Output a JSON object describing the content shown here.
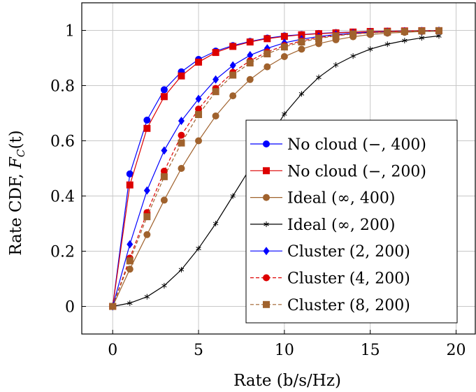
{
  "chart_data": {
    "type": "line",
    "title": "",
    "xlabel": "Rate (b/s/Hz)",
    "ylabel": "Rate CDF, F_C(t)",
    "ylabel_main": "Rate CDF, ",
    "ylabel_F": "F",
    "ylabel_sub": "C",
    "ylabel_arg": "(t)",
    "xlim": [
      -1.8,
      21.2
    ],
    "ylim": [
      -0.1,
      1.1
    ],
    "xticks": [
      0,
      5,
      10,
      15,
      20
    ],
    "xtick_labels": [
      "0",
      "5",
      "10",
      "15",
      "20"
    ],
    "yticks": [
      0,
      0.2,
      0.4,
      0.6,
      0.8,
      1
    ],
    "ytick_labels": [
      "0",
      "0.2",
      "0.4",
      "0.6",
      "0.8",
      "1"
    ],
    "grid": true,
    "legend_position": "bottom-right",
    "series": [
      {
        "name": "No cloud (−, 400)",
        "label_main": "No cloud ",
        "label_params": "(−, 400)",
        "color": "#0000ff",
        "marker": "circle",
        "dashed": false,
        "x": [
          0,
          1,
          2,
          3,
          4,
          5,
          6,
          7,
          8,
          9,
          10,
          11,
          12,
          13,
          14,
          15,
          16,
          17,
          18,
          19
        ],
        "y": [
          0,
          0.48,
          0.675,
          0.785,
          0.85,
          0.895,
          0.925,
          0.945,
          0.96,
          0.972,
          0.98,
          0.985,
          0.989,
          0.992,
          0.994,
          0.996,
          0.997,
          0.998,
          0.999,
          0.999
        ]
      },
      {
        "name": "No cloud (−, 200)",
        "label_main": "No cloud ",
        "label_params": "(−, 200)",
        "color": "#dd0000",
        "marker": "square",
        "dashed": false,
        "x": [
          0,
          1,
          2,
          3,
          4,
          5,
          6,
          7,
          8,
          9,
          10,
          11,
          12,
          13,
          14,
          15,
          16,
          17,
          18,
          19
        ],
        "y": [
          0,
          0.44,
          0.645,
          0.76,
          0.835,
          0.885,
          0.92,
          0.942,
          0.958,
          0.97,
          0.978,
          0.984,
          0.988,
          0.991,
          0.994,
          0.996,
          0.997,
          0.998,
          0.999,
          0.999
        ]
      },
      {
        "name": "Ideal (∞, 400)",
        "label_main": "Ideal ",
        "label_params": "(∞, 400)",
        "color": "#a0622d",
        "marker": "circle",
        "dashed": false,
        "x": [
          0,
          1,
          2,
          3,
          4,
          5,
          6,
          7,
          8,
          9,
          10,
          11,
          12,
          13,
          14,
          15,
          16,
          17,
          18,
          19
        ],
        "y": [
          0,
          0.135,
          0.26,
          0.385,
          0.5,
          0.6,
          0.69,
          0.763,
          0.822,
          0.868,
          0.905,
          0.932,
          0.952,
          0.966,
          0.977,
          0.985,
          0.99,
          0.993,
          0.996,
          0.997
        ]
      },
      {
        "name": "Ideal (∞, 200)",
        "label_main": "Ideal ",
        "label_params": "(∞, 200)",
        "color": "#000000",
        "marker": "star",
        "dashed": false,
        "x": [
          0,
          1,
          2,
          3,
          4,
          5,
          6,
          7,
          8,
          9,
          10,
          11,
          12,
          13,
          14,
          15,
          16,
          17,
          18,
          19
        ],
        "y": [
          0,
          0.012,
          0.035,
          0.075,
          0.133,
          0.21,
          0.3,
          0.4,
          0.5,
          0.6,
          0.697,
          0.77,
          0.83,
          0.875,
          0.907,
          0.932,
          0.95,
          0.963,
          0.973,
          0.98
        ]
      },
      {
        "name": "Cluster (2, 200)",
        "label_main": "Cluster ",
        "label_params": "(2, 200)",
        "color": "#0000ff",
        "marker": "diamond",
        "dashed": false,
        "x": [
          0,
          1,
          2,
          3,
          4,
          5,
          6,
          7,
          8,
          9,
          10,
          11,
          12,
          13,
          14,
          15,
          16,
          17,
          18,
          19
        ],
        "y": [
          0,
          0.225,
          0.42,
          0.565,
          0.672,
          0.752,
          0.822,
          0.873,
          0.91,
          0.935,
          0.955,
          0.968,
          0.978,
          0.985,
          0.99,
          0.993,
          0.995,
          0.997,
          0.998,
          0.999
        ]
      },
      {
        "name": "Cluster (4, 200)",
        "label_main": "Cluster ",
        "label_params": "(4, 200)",
        "color": "#dd0000",
        "marker": "circle",
        "dashed": true,
        "x": [
          0,
          1,
          2,
          3,
          4,
          5,
          6,
          7,
          8,
          9,
          10,
          11,
          12,
          13,
          14,
          15,
          16,
          17,
          18,
          19
        ],
        "y": [
          0,
          0.175,
          0.34,
          0.49,
          0.62,
          0.715,
          0.79,
          0.848,
          0.89,
          0.922,
          0.945,
          0.962,
          0.974,
          0.982,
          0.988,
          0.992,
          0.995,
          0.997,
          0.998,
          0.999
        ]
      },
      {
        "name": "Cluster (8, 200)",
        "label_main": "Cluster ",
        "label_params": "(8, 200)",
        "color": "#a0622d",
        "marker": "square",
        "dashed": true,
        "x": [
          0,
          1,
          2,
          3,
          4,
          5,
          6,
          7,
          8,
          9,
          10,
          11,
          12,
          13,
          14,
          15,
          16,
          17,
          18,
          19
        ],
        "y": [
          0,
          0.165,
          0.325,
          0.47,
          0.592,
          0.695,
          0.778,
          0.838,
          0.882,
          0.915,
          0.94,
          0.958,
          0.971,
          0.98,
          0.987,
          0.991,
          0.994,
          0.996,
          0.998,
          0.999
        ]
      }
    ]
  }
}
